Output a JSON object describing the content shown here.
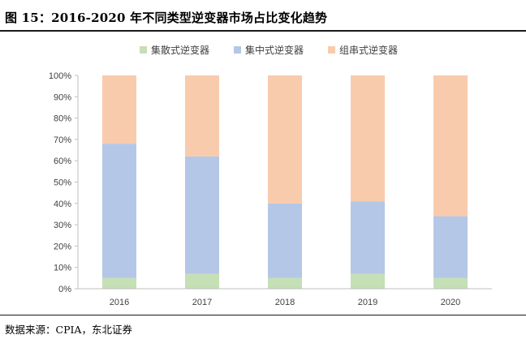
{
  "figure": {
    "title": "图 15：2016-2020 年不同类型逆变器市场占比变化趋势",
    "source": "数据来源：CPIA，东北证券"
  },
  "chart_data": {
    "type": "bar",
    "stacked": true,
    "categories": [
      "2016",
      "2017",
      "2018",
      "2019",
      "2020"
    ],
    "series": [
      {
        "name": "集散式逆变器",
        "color": "#c5e0b4",
        "values": [
          5,
          7,
          5,
          7,
          5
        ]
      },
      {
        "name": "集中式逆变器",
        "color": "#b4c7e7",
        "values": [
          63,
          55,
          35,
          34,
          29
        ]
      },
      {
        "name": "组串式逆变器",
        "color": "#f8cbad",
        "values": [
          32,
          38,
          60,
          59,
          66
        ]
      }
    ],
    "ylim": [
      0,
      100
    ],
    "yticks": [
      "0%",
      "10%",
      "20%",
      "30%",
      "40%",
      "50%",
      "60%",
      "70%",
      "80%",
      "90%",
      "100%"
    ],
    "legend_position": "top",
    "grid": false
  }
}
